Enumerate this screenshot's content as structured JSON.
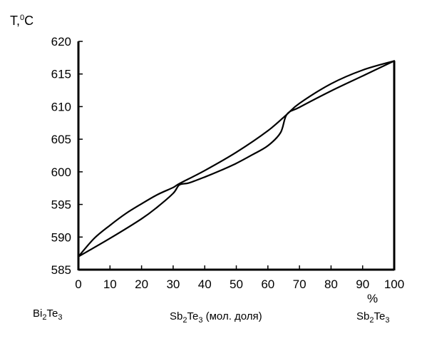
{
  "chart_data": {
    "type": "line",
    "title": "",
    "ylabel": "T,",
    "ylabel_sup": "0",
    "ylabel_unit": "C",
    "xlabel_unit": "%",
    "xlim": [
      0,
      100
    ],
    "ylim": [
      585,
      620
    ],
    "x_ticks": [
      0,
      10,
      20,
      30,
      40,
      50,
      60,
      70,
      80,
      90,
      100
    ],
    "y_ticks": [
      585,
      590,
      595,
      600,
      605,
      610,
      615,
      620
    ],
    "grid": false,
    "legend": "none",
    "series": [
      {
        "x": [
          0,
          5,
          10,
          15,
          20,
          25,
          30,
          32,
          40,
          50,
          60,
          66,
          70,
          80,
          90,
          100
        ],
        "y": [
          587,
          589.8,
          591.8,
          593.6,
          595.1,
          596.5,
          597.6,
          598.2,
          600.2,
          603.0,
          606.3,
          608.8,
          610.5,
          613.5,
          615.6,
          617
        ]
      },
      {
        "x": [
          0,
          10,
          20,
          25,
          30,
          32,
          35,
          40,
          45,
          50,
          55,
          60,
          64,
          66,
          70,
          80,
          90,
          100
        ],
        "y": [
          587,
          589.8,
          592.8,
          594.6,
          596.7,
          598.0,
          598.3,
          599.2,
          600.2,
          601.3,
          602.6,
          604.0,
          606.0,
          608.8,
          609.9,
          612.4,
          614.7,
          617
        ]
      }
    ]
  },
  "labels": {
    "left_end": {
      "base": "Bi",
      "sub1": "2",
      "mid": "Te",
      "sub2": "3"
    },
    "center": {
      "base": "Sb",
      "sub1": "2",
      "mid": "Te",
      "sub2": "3",
      "rest": " (мол. доля)"
    },
    "right_end": {
      "base": "Sb",
      "sub1": "2",
      "mid": "Te",
      "sub2": "3"
    }
  }
}
